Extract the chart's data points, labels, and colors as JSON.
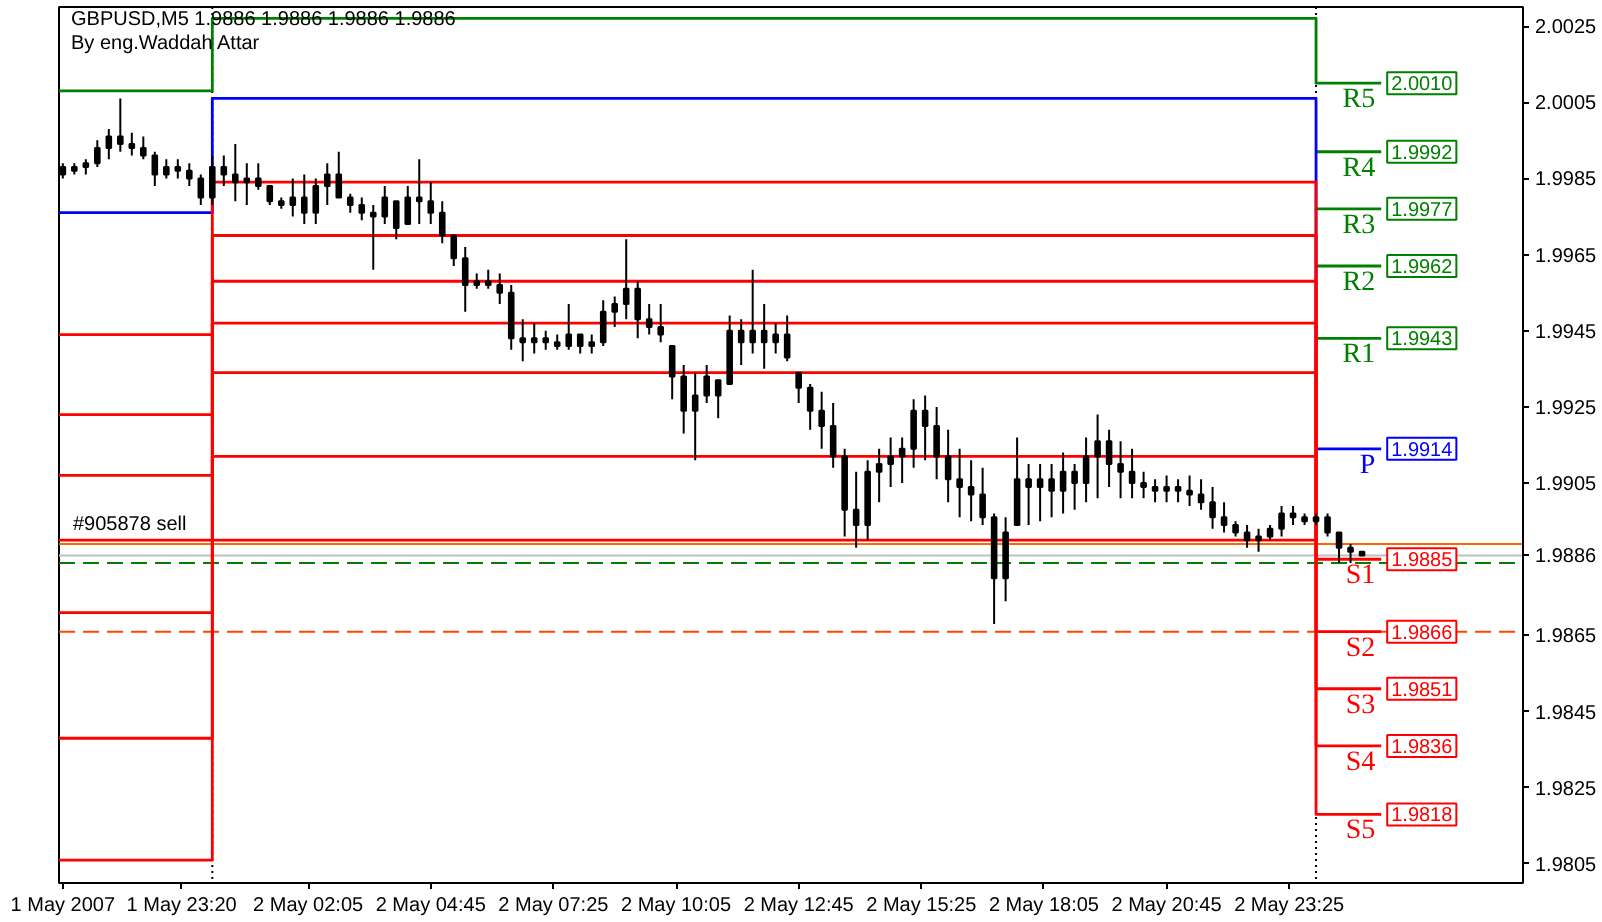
{
  "chart_data": {
    "type": "candlestick",
    "title": "GBPUSD,M5  1.9886 1.9886 1.9886 1.9886",
    "subtitle": "By eng.Waddah Attar",
    "color": "#000000",
    "grid": false,
    "legend": "right",
    "x": [
      "2007-05-01T20:45",
      "2007-05-01T21:00",
      "2007-05-01T21:15",
      "2007-05-01T21:30",
      "2007-05-01T21:45",
      "2007-05-01T22:00",
      "2007-05-01T22:15",
      "2007-05-01T22:30",
      "2007-05-01T22:45",
      "2007-05-01T23:00",
      "2007-05-01T23:15",
      "2007-05-01T23:30",
      "2007-05-01T23:45",
      "2007-05-02T00:00",
      "2007-05-02T00:15",
      "2007-05-02T00:30",
      "2007-05-02T00:45",
      "2007-05-02T01:00",
      "2007-05-02T01:15",
      "2007-05-02T01:30",
      "2007-05-02T01:45",
      "2007-05-02T02:00",
      "2007-05-02T02:15",
      "2007-05-02T02:30",
      "2007-05-02T02:45",
      "2007-05-02T03:00",
      "2007-05-02T03:15",
      "2007-05-02T03:30",
      "2007-05-02T03:45",
      "2007-05-02T04:00",
      "2007-05-02T04:15",
      "2007-05-02T04:30",
      "2007-05-02T04:45",
      "2007-05-02T05:00",
      "2007-05-02T05:15",
      "2007-05-02T05:30",
      "2007-05-02T05:45",
      "2007-05-02T06:00",
      "2007-05-02T06:15",
      "2007-05-02T06:30",
      "2007-05-02T06:45",
      "2007-05-02T07:00",
      "2007-05-02T07:15",
      "2007-05-02T07:30",
      "2007-05-02T07:45",
      "2007-05-02T08:00",
      "2007-05-02T08:15",
      "2007-05-02T08:30",
      "2007-05-02T08:45",
      "2007-05-02T09:00",
      "2007-05-02T09:15",
      "2007-05-02T09:30",
      "2007-05-02T09:45",
      "2007-05-02T10:00",
      "2007-05-02T10:15",
      "2007-05-02T10:30",
      "2007-05-02T10:45",
      "2007-05-02T11:00",
      "2007-05-02T11:15",
      "2007-05-02T11:30",
      "2007-05-02T11:45",
      "2007-05-02T12:00",
      "2007-05-02T12:15",
      "2007-05-02T12:30",
      "2007-05-02T12:45",
      "2007-05-02T13:00",
      "2007-05-02T13:15",
      "2007-05-02T13:30",
      "2007-05-02T13:45",
      "2007-05-02T14:00",
      "2007-05-02T14:15",
      "2007-05-02T14:30",
      "2007-05-02T14:45",
      "2007-05-02T15:00",
      "2007-05-02T15:15",
      "2007-05-02T15:30",
      "2007-05-02T15:45",
      "2007-05-02T16:00",
      "2007-05-02T16:15",
      "2007-05-02T16:30",
      "2007-05-02T16:45",
      "2007-05-02T17:00",
      "2007-05-02T17:15",
      "2007-05-02T17:30",
      "2007-05-02T17:45",
      "2007-05-02T18:00",
      "2007-05-02T18:15",
      "2007-05-02T18:30",
      "2007-05-02T18:45",
      "2007-05-02T19:00",
      "2007-05-02T19:15",
      "2007-05-02T19:30",
      "2007-05-02T19:45",
      "2007-05-02T20:00",
      "2007-05-02T20:15",
      "2007-05-02T20:30",
      "2007-05-02T20:45",
      "2007-05-02T21:00",
      "2007-05-02T21:15",
      "2007-05-02T21:30",
      "2007-05-02T21:45",
      "2007-05-02T22:00",
      "2007-05-02T22:15",
      "2007-05-02T22:30",
      "2007-05-02T22:45",
      "2007-05-02T23:00",
      "2007-05-02T23:15",
      "2007-05-02T23:30",
      "2007-05-02T23:45",
      "2007-05-03T00:00",
      "2007-05-03T00:15",
      "2007-05-03T00:30",
      "2007-05-03T00:45",
      "2007-05-03T01:00"
    ],
    "ohlc": [
      [
        1.9986,
        1.9989,
        1.9985,
        1.9988
      ],
      [
        1.9987,
        1.9989,
        1.9986,
        1.9988
      ],
      [
        1.9988,
        1.999,
        1.9986,
        1.9989
      ],
      [
        1.9989,
        1.9995,
        1.9988,
        1.9993
      ],
      [
        1.9993,
        1.9998,
        1.999,
        1.9996
      ],
      [
        1.9996,
        2.0006,
        1.9992,
        1.9994
      ],
      [
        1.9994,
        1.9997,
        1.9991,
        1.9993
      ],
      [
        1.9993,
        1.9996,
        1.999,
        1.9991
      ],
      [
        1.9991,
        1.9992,
        1.9983,
        1.9986
      ],
      [
        1.9986,
        1.999,
        1.9985,
        1.9988
      ],
      [
        1.9988,
        1.999,
        1.9985,
        1.9987
      ],
      [
        1.9987,
        1.9989,
        1.9983,
        1.9985
      ],
      [
        1.9985,
        1.9986,
        1.9978,
        1.998
      ],
      [
        1.998,
        1.9991,
        1.9978,
        1.9988
      ],
      [
        1.9988,
        1.9991,
        1.9983,
        1.9986
      ],
      [
        1.9986,
        1.9994,
        1.9979,
        1.9984
      ],
      [
        1.9984,
        1.9989,
        1.9978,
        1.9985
      ],
      [
        1.9985,
        1.9989,
        1.9982,
        1.9983
      ],
      [
        1.9983,
        1.9983,
        1.9978,
        1.9979
      ],
      [
        1.9979,
        1.998,
        1.9977,
        1.9978
      ],
      [
        1.9978,
        1.9985,
        1.9975,
        1.998
      ],
      [
        1.998,
        1.9986,
        1.9973,
        1.9976
      ],
      [
        1.9976,
        1.9985,
        1.9973,
        1.9983
      ],
      [
        1.9983,
        1.9989,
        1.9978,
        1.9986
      ],
      [
        1.9986,
        1.9992,
        1.998,
        1.998
      ],
      [
        1.998,
        1.9981,
        1.9976,
        1.9978
      ],
      [
        1.9978,
        1.998,
        1.9974,
        1.9976
      ],
      [
        1.9976,
        1.9978,
        1.9961,
        1.9975
      ],
      [
        1.9975,
        1.9983,
        1.9973,
        1.998
      ],
      [
        1.9979,
        1.9979,
        1.9969,
        1.9972
      ],
      [
        1.9973,
        1.9983,
        1.9973,
        1.998
      ],
      [
        1.998,
        1.999,
        1.9973,
        1.9979
      ],
      [
        1.9979,
        1.9984,
        1.9973,
        1.9976
      ],
      [
        1.9976,
        1.9979,
        1.9968,
        1.997
      ],
      [
        1.997,
        1.997,
        1.9962,
        1.9964
      ],
      [
        1.9964,
        1.9967,
        1.995,
        1.9957
      ],
      [
        1.9957,
        1.996,
        1.9956,
        1.9958
      ],
      [
        1.9958,
        1.9961,
        1.9956,
        1.9957
      ],
      [
        1.9957,
        1.996,
        1.9952,
        1.9955
      ],
      [
        1.9955,
        1.9957,
        1.994,
        1.9943
      ],
      [
        1.9943,
        1.9948,
        1.9937,
        1.9942
      ],
      [
        1.9942,
        1.9947,
        1.9939,
        1.9943
      ],
      [
        1.9943,
        1.9945,
        1.994,
        1.9942
      ],
      [
        1.9942,
        1.9944,
        1.994,
        1.9941
      ],
      [
        1.9941,
        1.9952,
        1.994,
        1.9944
      ],
      [
        1.9944,
        1.9944,
        1.9939,
        1.9941
      ],
      [
        1.9941,
        1.9944,
        1.9939,
        1.9942
      ],
      [
        1.9942,
        1.9953,
        1.9941,
        1.995
      ],
      [
        1.995,
        1.9954,
        1.9946,
        1.9952
      ],
      [
        1.9952,
        1.9969,
        1.9948,
        1.9956
      ],
      [
        1.9956,
        1.9958,
        1.9943,
        1.9948
      ],
      [
        1.9948,
        1.9952,
        1.9944,
        1.9946
      ],
      [
        1.9946,
        1.9952,
        1.9942,
        1.9944
      ],
      [
        1.9941,
        1.9941,
        1.9927,
        1.9933
      ],
      [
        1.9933,
        1.9936,
        1.9918,
        1.9924
      ],
      [
        1.9924,
        1.9934,
        1.9911,
        1.9928
      ],
      [
        1.9928,
        1.9936,
        1.9926,
        1.9933
      ],
      [
        1.9932,
        1.9932,
        1.9922,
        1.9928
      ],
      [
        1.9931,
        1.9949,
        1.9931,
        1.9945
      ],
      [
        1.9945,
        1.9948,
        1.9936,
        1.9942
      ],
      [
        1.9942,
        1.9961,
        1.9939,
        1.9945
      ],
      [
        1.9945,
        1.9952,
        1.9935,
        1.9942
      ],
      [
        1.9942,
        1.9947,
        1.9939,
        1.9944
      ],
      [
        1.9944,
        1.9949,
        1.9937,
        1.9938
      ],
      [
        1.9934,
        1.9934,
        1.9926,
        1.993
      ],
      [
        1.993,
        1.9931,
        1.9919,
        1.9924
      ],
      [
        1.9924,
        1.9929,
        1.9914,
        1.992
      ],
      [
        1.992,
        1.9926,
        1.9909,
        1.9912
      ],
      [
        1.9912,
        1.9914,
        1.9891,
        1.9898
      ],
      [
        1.9898,
        1.9908,
        1.9888,
        1.9894
      ],
      [
        1.9894,
        1.9911,
        1.989,
        1.9908
      ],
      [
        1.9908,
        1.9914,
        1.99,
        1.991
      ],
      [
        1.991,
        1.9917,
        1.9904,
        1.9912
      ],
      [
        1.9912,
        1.9917,
        1.9905,
        1.9914
      ],
      [
        1.9914,
        1.9927,
        1.9909,
        1.9924
      ],
      [
        1.9924,
        1.9928,
        1.9911,
        1.992
      ],
      [
        1.992,
        1.9925,
        1.9906,
        1.9912
      ],
      [
        1.9912,
        1.9919,
        1.99,
        1.9906
      ],
      [
        1.9906,
        1.9914,
        1.9896,
        1.9904
      ],
      [
        1.9904,
        1.9911,
        1.9895,
        1.9902
      ],
      [
        1.9902,
        1.9909,
        1.9894,
        1.9896
      ],
      [
        1.9896,
        1.9897,
        1.9868,
        1.988
      ],
      [
        1.988,
        1.9896,
        1.9874,
        1.9892
      ],
      [
        1.9894,
        1.9917,
        1.9894,
        1.9906
      ],
      [
        1.9906,
        1.991,
        1.9894,
        1.9904
      ],
      [
        1.9904,
        1.991,
        1.9895,
        1.9906
      ],
      [
        1.9906,
        1.991,
        1.9896,
        1.9903
      ],
      [
        1.9903,
        1.9913,
        1.9897,
        1.9908
      ],
      [
        1.9908,
        1.991,
        1.9898,
        1.9905
      ],
      [
        1.9905,
        1.9917,
        1.99,
        1.9912
      ],
      [
        1.9912,
        1.9923,
        1.9901,
        1.9916
      ],
      [
        1.9916,
        1.9919,
        1.9904,
        1.991
      ],
      [
        1.991,
        1.9916,
        1.9901,
        1.9908
      ],
      [
        1.9908,
        1.9914,
        1.9901,
        1.9905
      ],
      [
        1.9905,
        1.9908,
        1.9901,
        1.9904
      ],
      [
        1.9904,
        1.9906,
        1.99,
        1.9903
      ],
      [
        1.9903,
        1.9907,
        1.99,
        1.9904
      ],
      [
        1.9904,
        1.9906,
        1.99,
        1.9903
      ],
      [
        1.9903,
        1.9907,
        1.9899,
        1.9902
      ],
      [
        1.9902,
        1.9906,
        1.9898,
        1.99
      ],
      [
        1.99,
        1.9904,
        1.9893,
        1.9896
      ],
      [
        1.9896,
        1.99,
        1.9892,
        1.9894
      ],
      [
        1.9894,
        1.9895,
        1.9891,
        1.9892
      ],
      [
        1.9892,
        1.9894,
        1.9888,
        1.989
      ],
      [
        1.989,
        1.9893,
        1.9887,
        1.9891
      ],
      [
        1.9891,
        1.9894,
        1.989,
        1.9893
      ],
      [
        1.9893,
        1.9899,
        1.9891,
        1.9897
      ],
      [
        1.9897,
        1.9899,
        1.9894,
        1.9896
      ],
      [
        1.9896,
        1.9897,
        1.9894,
        1.9895
      ],
      [
        1.9895,
        1.9897,
        1.9894,
        1.9896
      ],
      [
        1.9896,
        1.9897,
        1.9891,
        1.9892
      ],
      [
        1.9892,
        1.9892,
        1.9884,
        1.9888
      ],
      [
        1.9888,
        1.9889,
        1.9884,
        1.9887
      ],
      [
        1.9887,
        1.9887,
        1.9886,
        1.9886
      ]
    ],
    "xlim": [
      "2007-05-01T20:40",
      "2007-05-03T04:30"
    ],
    "ylim": [
      1.98,
      2.003
    ],
    "xticks": [
      {
        "value": "2007-05-01T20:45",
        "label": "1 May 2007"
      },
      {
        "value": "2007-05-01T23:20",
        "label": "1 May 23:20"
      },
      {
        "value": "2007-05-02T02:05",
        "label": "2 May 02:05"
      },
      {
        "value": "2007-05-02T04:45",
        "label": "2 May 04:45"
      },
      {
        "value": "2007-05-02T07:25",
        "label": "2 May 07:25"
      },
      {
        "value": "2007-05-02T10:05",
        "label": "2 May 10:05"
      },
      {
        "value": "2007-05-02T12:45",
        "label": "2 May 12:45"
      },
      {
        "value": "2007-05-02T15:25",
        "label": "2 May 15:25"
      },
      {
        "value": "2007-05-02T18:05",
        "label": "2 May 18:05"
      },
      {
        "value": "2007-05-02T20:45",
        "label": "2 May 20:45"
      },
      {
        "value": "2007-05-02T23:25",
        "label": "2 May 23:25"
      }
    ],
    "yticks": [
      2.0025,
      2.0005,
      1.9985,
      1.9965,
      1.9945,
      1.9925,
      1.9905,
      1.9886,
      1.9865,
      1.9845,
      1.9825,
      1.9805
    ],
    "series": [
      {
        "type": "step",
        "name": "R5",
        "color": "#008000",
        "x": [
          "2007-05-01T20:40",
          "2007-05-02T00:00",
          "2007-05-03T00:00",
          "2007-05-03T01:25"
        ],
        "values": [
          2.0008,
          2.0027,
          2.001,
          2.001
        ],
        "value_labels": [
          null,
          null,
          null,
          "2.0010"
        ]
      },
      {
        "type": "step",
        "name": "R4",
        "color": "#008000",
        "x": [
          "2007-05-03T00:00",
          "2007-05-03T01:25"
        ],
        "values": [
          1.9992,
          1.9992
        ],
        "value_labels": [
          null,
          "1.9992"
        ]
      },
      {
        "type": "step",
        "name": "R3",
        "color": "#008000",
        "x": [
          "2007-05-03T00:00",
          "2007-05-03T01:25"
        ],
        "values": [
          1.9977,
          1.9977
        ],
        "value_labels": [
          null,
          "1.9977"
        ]
      },
      {
        "type": "step",
        "name": "R2",
        "color": "#008000",
        "x": [
          "2007-05-03T00:00",
          "2007-05-03T01:25"
        ],
        "values": [
          1.9962,
          1.9962
        ],
        "value_labels": [
          null,
          "1.9962"
        ]
      },
      {
        "type": "step",
        "name": "R1",
        "color": "#008000",
        "x": [
          "2007-05-03T00:00",
          "2007-05-03T01:25"
        ],
        "values": [
          1.9943,
          1.9943
        ],
        "value_labels": [
          null,
          "1.9943"
        ]
      },
      {
        "type": "step",
        "name": "P",
        "color": "#0000ff",
        "x": [
          "2007-05-01T20:40",
          "2007-05-02T00:00",
          "2007-05-03T00:00",
          "2007-05-03T01:25"
        ],
        "values": [
          1.9976,
          2.0006,
          1.9914,
          1.9914
        ],
        "value_labels": [
          null,
          null,
          null,
          "1.9914"
        ]
      },
      {
        "type": "step",
        "name": "S1",
        "color": "#ff0000",
        "x": [
          "2007-05-01T20:40",
          "2007-05-02T00:00",
          "2007-05-03T00:00",
          "2007-05-03T01:25"
        ],
        "values": [
          1.9944,
          1.9984,
          1.9885,
          1.9885
        ],
        "value_labels": [
          null,
          null,
          null,
          "1.9885"
        ]
      },
      {
        "type": "step",
        "name": "S2",
        "color": "#ff0000",
        "x": [
          "2007-05-01T20:40",
          "2007-05-02T00:00",
          "2007-05-03T00:00",
          "2007-05-03T01:25"
        ],
        "values": [
          1.9923,
          1.997,
          1.9866,
          1.9866
        ],
        "value_labels": [
          null,
          null,
          null,
          "1.9866"
        ]
      },
      {
        "type": "step",
        "name": "S3",
        "color": "#ff0000",
        "x": [
          "2007-05-01T20:40",
          "2007-05-02T00:00",
          "2007-05-03T00:00",
          "2007-05-03T01:25"
        ],
        "values": [
          1.9907,
          1.9958,
          1.9851,
          1.9851
        ],
        "value_labels": [
          null,
          null,
          null,
          "1.9851"
        ]
      },
      {
        "type": "step",
        "name": "S4",
        "color": "#ff0000",
        "x": [
          "2007-05-01T20:40",
          "2007-05-02T00:00",
          "2007-05-03T00:00",
          "2007-05-03T01:25"
        ],
        "values": [
          1.989,
          1.9947,
          1.9836,
          1.9836
        ],
        "value_labels": [
          null,
          null,
          null,
          "1.9836"
        ]
      },
      {
        "type": "step",
        "name": "S5",
        "color": "#ff0000",
        "x": [
          "2007-05-01T20:40",
          "2007-05-02T00:00",
          "2007-05-03T00:00",
          "2007-05-03T01:25"
        ],
        "values": [
          1.9871,
          1.9934,
          1.9818,
          1.9818
        ],
        "value_labels": [
          null,
          null,
          null,
          "1.9818"
        ]
      },
      {
        "type": "step",
        "color": "#ff0000",
        "x": [
          "2007-05-01T20:40",
          "2007-05-02T00:00",
          "2007-05-03T00:00"
        ],
        "values": [
          1.9838,
          1.9912,
          1.9912
        ]
      },
      {
        "type": "step",
        "color": "#ff0000",
        "x": [
          "2007-05-01T20:40",
          "2007-05-02T00:00",
          "2007-05-03T00:00"
        ],
        "values": [
          1.9806,
          1.989,
          1.989
        ]
      }
    ],
    "ref_lines": [
      {
        "axis": "x",
        "value": "2007-05-02T00:00",
        "color": "#000000",
        "line_style": "dotted"
      },
      {
        "axis": "x",
        "value": "2007-05-03T00:00",
        "color": "#000000",
        "line_style": "dotted"
      },
      {
        "axis": "y",
        "value": 1.9889,
        "label": "#905878 sell",
        "color": "#ff6600",
        "line_style": "solid"
      },
      {
        "axis": "y",
        "value": 1.9886,
        "color": "#c0c0c0",
        "line_style": "solid"
      },
      {
        "axis": "y",
        "value": 1.9884,
        "color": "#008000",
        "line_style": "dashed"
      },
      {
        "axis": "y",
        "value": 1.9866,
        "color": "#ff4500",
        "line_style": "dashed"
      }
    ]
  }
}
